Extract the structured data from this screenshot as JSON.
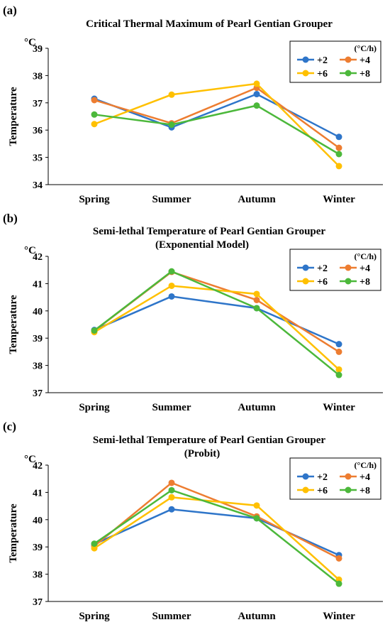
{
  "chart_data": [
    {
      "panel_label": "(a)",
      "type": "line",
      "title": "Critical Thermal Maximum of  Pearl Gentian  Grouper",
      "subtitle": "",
      "ylabel": "Temperature",
      "unit_label": "°C",
      "categories": [
        "Spring",
        "Summer",
        "Autumn",
        "Winter"
      ],
      "ylim": [
        34,
        39
      ],
      "yticks": [
        34,
        35,
        36,
        37,
        38,
        39
      ],
      "legend_title": "(°C/h)",
      "legend_position": "top-right",
      "series": [
        {
          "name": "+2",
          "color": "#2e75c9",
          "values": [
            37.15,
            36.1,
            37.32,
            35.75
          ]
        },
        {
          "name": "+4",
          "color": "#ed7d31",
          "values": [
            37.1,
            36.25,
            37.55,
            35.35
          ]
        },
        {
          "name": "+6",
          "color": "#ffc000",
          "values": [
            36.22,
            37.3,
            37.7,
            34.68
          ]
        },
        {
          "name": "+8",
          "color": "#4cb83b",
          "values": [
            36.57,
            36.2,
            36.9,
            35.12
          ]
        }
      ]
    },
    {
      "panel_label": "(b)",
      "type": "line",
      "title": "Semi-lethal Temperature of  Pearl Gentian Grouper",
      "subtitle": "(Exponential Model)",
      "ylabel": "Temperature",
      "unit_label": "°C",
      "categories": [
        "Spring",
        "Summer",
        "Autumn",
        "Winter"
      ],
      "ylim": [
        37,
        42
      ],
      "yticks": [
        37,
        38,
        39,
        40,
        41,
        42
      ],
      "legend_title": "(°C/h)",
      "legend_position": "top-right",
      "series": [
        {
          "name": "+2",
          "color": "#2e75c9",
          "values": [
            39.3,
            40.53,
            40.1,
            38.78
          ]
        },
        {
          "name": "+4",
          "color": "#ed7d31",
          "values": [
            39.27,
            41.43,
            40.4,
            38.5
          ]
        },
        {
          "name": "+6",
          "color": "#ffc000",
          "values": [
            39.22,
            40.92,
            40.62,
            37.85
          ]
        },
        {
          "name": "+8",
          "color": "#4cb83b",
          "values": [
            39.28,
            41.45,
            40.1,
            37.65
          ]
        }
      ]
    },
    {
      "panel_label": "(c)",
      "type": "line",
      "title": "Semi-lethal Temperature of  Pearl Gentian Grouper",
      "subtitle": "(Probit)",
      "ylabel": "Temperature",
      "unit_label": "°C",
      "categories": [
        "Spring",
        "Summer",
        "Autumn",
        "Winter"
      ],
      "ylim": [
        37,
        42
      ],
      "yticks": [
        37,
        38,
        39,
        40,
        41,
        42
      ],
      "legend_title": "(°C/h)",
      "legend_position": "top-right",
      "series": [
        {
          "name": "+2",
          "color": "#2e75c9",
          "values": [
            39.1,
            40.38,
            40.05,
            38.7
          ]
        },
        {
          "name": "+4",
          "color": "#ed7d31",
          "values": [
            39.03,
            41.35,
            40.12,
            38.58
          ]
        },
        {
          "name": "+6",
          "color": "#ffc000",
          "values": [
            38.95,
            40.82,
            40.52,
            37.8
          ]
        },
        {
          "name": "+8",
          "color": "#4cb83b",
          "values": [
            39.12,
            41.08,
            40.05,
            37.65
          ]
        }
      ]
    }
  ]
}
